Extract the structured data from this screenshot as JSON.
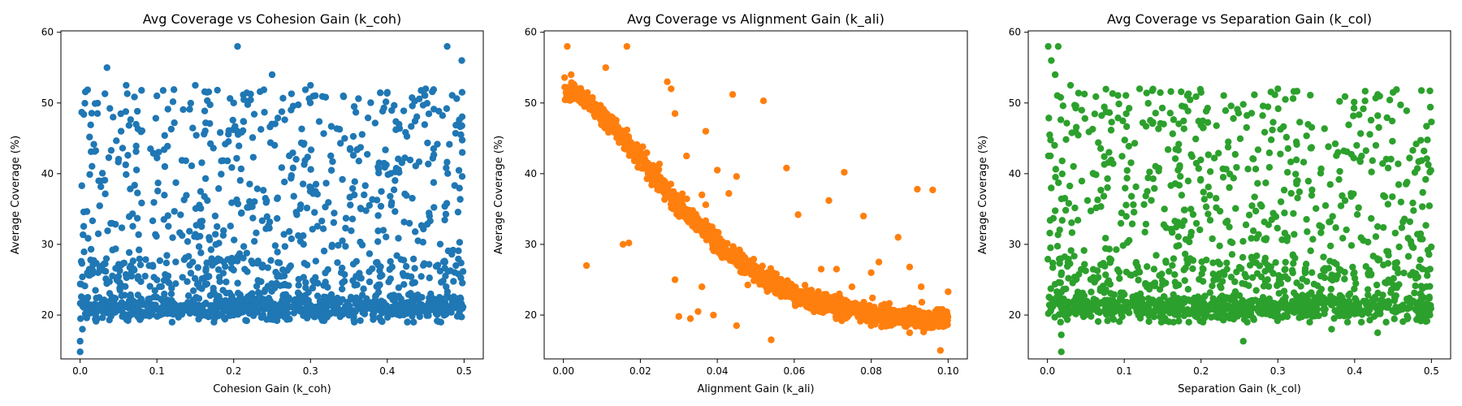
{
  "chart_data": [
    {
      "type": "scatter",
      "title": "Avg Coverage vs Cohesion Gain (k_coh)",
      "xlabel": "Cohesion Gain (k_coh)",
      "ylabel": "Average Coverage (%)",
      "xlim": [
        -0.025,
        0.525
      ],
      "ylim": [
        13.8,
        60.2
      ],
      "xticks": [
        0.0,
        0.1,
        0.2,
        0.3,
        0.4,
        0.5
      ],
      "xtick_labels": [
        "0.0",
        "0.1",
        "0.2",
        "0.3",
        "0.4",
        "0.5"
      ],
      "yticks": [
        20,
        30,
        40,
        50,
        60
      ],
      "ytick_labels": [
        "20",
        "30",
        "40",
        "50",
        "60"
      ],
      "color": "#1f77b4",
      "grid": false,
      "pattern": "uniform",
      "points": [
        [
          0.0,
          14.8
        ],
        [
          0.0,
          16.3
        ],
        [
          0.003,
          18.0
        ],
        [
          0.035,
          55.0
        ],
        [
          0.205,
          58.0
        ],
        [
          0.25,
          54.0
        ],
        [
          0.478,
          58.0
        ],
        [
          0.497,
          56.0
        ],
        [
          0.01,
          22.5
        ],
        [
          0.02,
          23.5
        ],
        [
          0.06,
          52.5
        ],
        [
          0.1,
          51.0
        ],
        [
          0.15,
          52.5
        ],
        [
          0.3,
          52.5
        ],
        [
          0.4,
          51.5
        ],
        [
          0.45,
          52.0
        ]
      ]
    },
    {
      "type": "scatter",
      "title": "Avg Coverage vs Alignment Gain (k_ali)",
      "xlabel": "Alignment Gain (k_ali)",
      "ylabel": "Average Coverage (%)",
      "xlim": [
        -0.005,
        0.105
      ],
      "ylim": [
        13.8,
        60.2
      ],
      "xticks": [
        0.0,
        0.02,
        0.04,
        0.06,
        0.08,
        0.1
      ],
      "xtick_labels": [
        "0.00",
        "0.02",
        "0.04",
        "0.06",
        "0.08",
        "0.10"
      ],
      "yticks": [
        20,
        30,
        40,
        50,
        60
      ],
      "ytick_labels": [
        "20",
        "30",
        "40",
        "50",
        "60"
      ],
      "color": "#ff7f0e",
      "grid": false,
      "pattern": "decay",
      "points": [
        [
          0.001,
          58.0
        ],
        [
          0.0165,
          58.0
        ],
        [
          0.002,
          54.0
        ],
        [
          0.011,
          55.0
        ],
        [
          0.006,
          27.0
        ],
        [
          0.0155,
          30.0
        ],
        [
          0.017,
          30.2
        ],
        [
          0.028,
          52.0
        ],
        [
          0.027,
          53.0
        ],
        [
          0.029,
          48.5
        ],
        [
          0.032,
          42.5
        ],
        [
          0.037,
          46.0
        ],
        [
          0.044,
          51.2
        ],
        [
          0.052,
          50.3
        ],
        [
          0.058,
          40.8
        ],
        [
          0.061,
          34.2
        ],
        [
          0.069,
          36.2
        ],
        [
          0.073,
          40.2
        ],
        [
          0.078,
          34.0
        ],
        [
          0.087,
          31.0
        ],
        [
          0.092,
          37.8
        ],
        [
          0.096,
          37.7
        ],
        [
          0.098,
          15.0
        ],
        [
          0.054,
          16.5
        ],
        [
          0.045,
          18.5
        ],
        [
          0.03,
          19.8
        ],
        [
          0.029,
          25.0
        ],
        [
          0.033,
          19.5
        ],
        [
          0.035,
          20.5
        ],
        [
          0.036,
          24.0
        ],
        [
          0.039,
          20.0
        ],
        [
          0.04,
          40.5
        ],
        [
          0.045,
          39.6
        ],
        [
          0.043,
          37.2
        ],
        [
          0.036,
          37.0
        ],
        [
          0.037,
          35.6
        ],
        [
          0.067,
          26.5
        ],
        [
          0.071,
          26.5
        ],
        [
          0.075,
          24.0
        ],
        [
          0.08,
          26.0
        ],
        [
          0.082,
          27.5
        ],
        [
          0.09,
          26.8
        ],
        [
          0.093,
          24.0
        ],
        [
          0.1,
          23.3
        ],
        [
          0.08,
          18.5
        ],
        [
          0.09,
          17.5
        ]
      ]
    },
    {
      "type": "scatter",
      "title": "Avg Coverage vs Separation Gain (k_col)",
      "xlabel": "Separation Gain (k_col)",
      "ylabel": "Average Coverage (%)",
      "xlim": [
        -0.025,
        0.525
      ],
      "ylim": [
        13.8,
        60.2
      ],
      "xticks": [
        0.0,
        0.1,
        0.2,
        0.3,
        0.4,
        0.5
      ],
      "xtick_labels": [
        "0.0",
        "0.1",
        "0.2",
        "0.3",
        "0.4",
        "0.5"
      ],
      "yticks": [
        20,
        30,
        40,
        50,
        60
      ],
      "ytick_labels": [
        "20",
        "30",
        "40",
        "50",
        "60"
      ],
      "color": "#2ca02c",
      "grid": false,
      "pattern": "uniform",
      "points": [
        [
          0.001,
          58.0
        ],
        [
          0.014,
          58.0
        ],
        [
          0.005,
          56.0
        ],
        [
          0.01,
          54.0
        ],
        [
          0.018,
          14.8
        ],
        [
          0.018,
          17.2
        ],
        [
          0.255,
          16.3
        ],
        [
          0.43,
          17.5
        ],
        [
          0.37,
          18.0
        ],
        [
          0.03,
          52.5
        ],
        [
          0.12,
          52.0
        ],
        [
          0.2,
          51.5
        ],
        [
          0.3,
          52.0
        ],
        [
          0.45,
          51.5
        ]
      ]
    }
  ]
}
